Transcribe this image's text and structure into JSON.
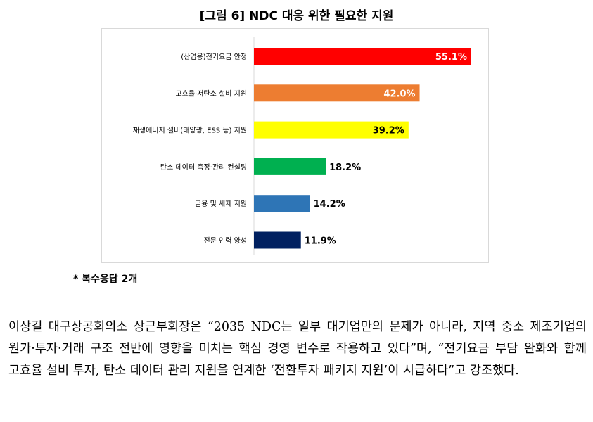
{
  "figure": {
    "title": "[그림 6] NDC 대응 위한 필요한 지원",
    "footnote": "* 복수응답 2개"
  },
  "chart_data": {
    "type": "bar",
    "orientation": "horizontal",
    "title": "",
    "xlabel": "",
    "ylabel": "",
    "xlim": [
      0,
      60
    ],
    "grid": false,
    "categories": [
      "(산업용)전기요금 안정",
      "고효율·저탄소 설비 지원",
      "재생에너지 설비(태양광, ESS 등) 지원",
      "탄소 데이터 측정·관리 컨설팅",
      "금융 및 세제 지원",
      "전문 인력 양성"
    ],
    "values": [
      55.1,
      42.0,
      39.2,
      18.2,
      14.2,
      11.9
    ],
    "value_labels": [
      "55.1%",
      "42.0%",
      "39.2%",
      "18.2%",
      "14.2%",
      "11.9%"
    ],
    "label_position": [
      "inside",
      "inside",
      "inside",
      "outside",
      "outside",
      "outside"
    ],
    "label_colors": [
      "#ffffff",
      "#ffffff",
      "#000000",
      "#000000",
      "#000000",
      "#000000"
    ],
    "colors": [
      "#ff0000",
      "#ed7d31",
      "#ffff00",
      "#00b050",
      "#2e75b6",
      "#002060"
    ]
  },
  "body": {
    "paragraph": "이상길 대구상공회의소 상근부회장은 “2035 NDC는 일부 대기업만의 문제가 아니라, 지역 중소 제조기업의 원가·투자·거래 구조 전반에 영향을 미치는 핵심 경영 변수로 작용하고 있다”며, “전기요금 부담 완화와 함께 고효율 설비 투자, 탄소 데이터 관리 지원을 연계한 ‘전환투자 패키지 지원’이 시급하다”고 강조했다."
  }
}
